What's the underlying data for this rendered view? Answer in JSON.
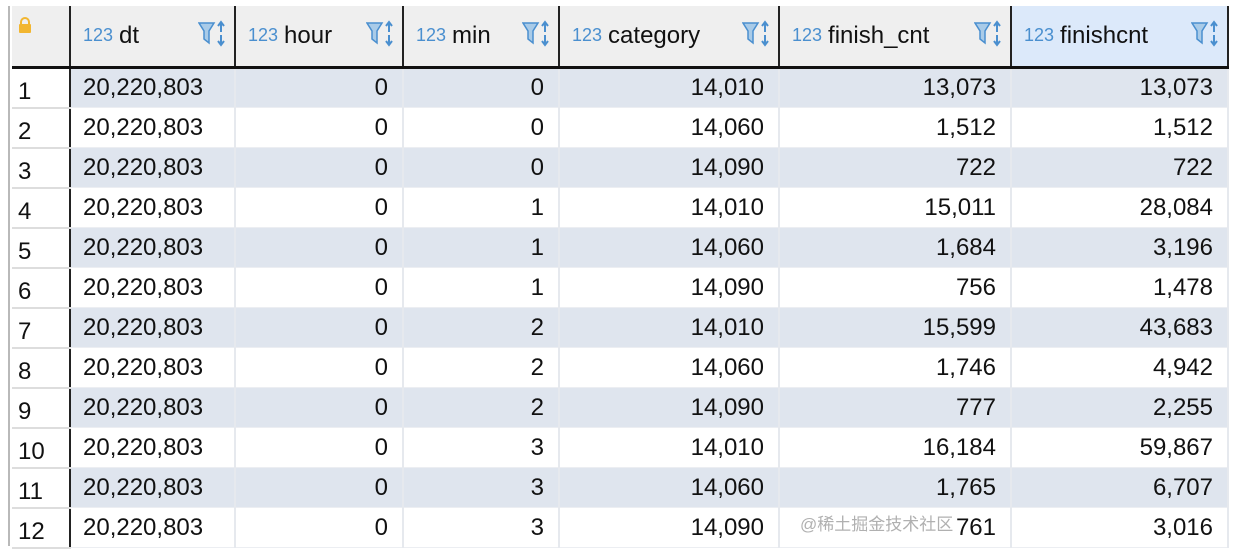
{
  "columns": [
    {
      "type_badge": "123",
      "name": "dt"
    },
    {
      "type_badge": "123",
      "name": "hour"
    },
    {
      "type_badge": "123",
      "name": "min"
    },
    {
      "type_badge": "123",
      "name": "category"
    },
    {
      "type_badge": "123",
      "name": "finish_cnt"
    },
    {
      "type_badge": "123",
      "name": "finishcnt"
    }
  ],
  "rows": [
    {
      "n": "1",
      "v": [
        "20,220,803",
        "0",
        "0",
        "14,010",
        "13,073",
        "13,073"
      ]
    },
    {
      "n": "2",
      "v": [
        "20,220,803",
        "0",
        "0",
        "14,060",
        "1,512",
        "1,512"
      ]
    },
    {
      "n": "3",
      "v": [
        "20,220,803",
        "0",
        "0",
        "14,090",
        "722",
        "722"
      ]
    },
    {
      "n": "4",
      "v": [
        "20,220,803",
        "0",
        "1",
        "14,010",
        "15,011",
        "28,084"
      ]
    },
    {
      "n": "5",
      "v": [
        "20,220,803",
        "0",
        "1",
        "14,060",
        "1,684",
        "3,196"
      ]
    },
    {
      "n": "6",
      "v": [
        "20,220,803",
        "0",
        "1",
        "14,090",
        "756",
        "1,478"
      ]
    },
    {
      "n": "7",
      "v": [
        "20,220,803",
        "0",
        "2",
        "14,010",
        "15,599",
        "43,683"
      ]
    },
    {
      "n": "8",
      "v": [
        "20,220,803",
        "0",
        "2",
        "14,060",
        "1,746",
        "4,942"
      ]
    },
    {
      "n": "9",
      "v": [
        "20,220,803",
        "0",
        "2",
        "14,090",
        "777",
        "2,255"
      ]
    },
    {
      "n": "10",
      "v": [
        "20,220,803",
        "0",
        "3",
        "14,010",
        "16,184",
        "59,867"
      ]
    },
    {
      "n": "11",
      "v": [
        "20,220,803",
        "0",
        "3",
        "14,060",
        "1,765",
        "6,707"
      ]
    },
    {
      "n": "12",
      "v": [
        "20,220,803",
        "0",
        "3",
        "14,090",
        "761",
        "3,016"
      ]
    }
  ],
  "watermark": "@稀土掘金技术社区",
  "colors": {
    "accent": "#4a8fcf",
    "row_stripe": "#dfe5ee",
    "selected_header": "#dce9fa",
    "lock": "#f2b630"
  },
  "icons": {
    "lock": "lock-icon",
    "filter": "filter-icon",
    "sort": "sort-icon"
  }
}
